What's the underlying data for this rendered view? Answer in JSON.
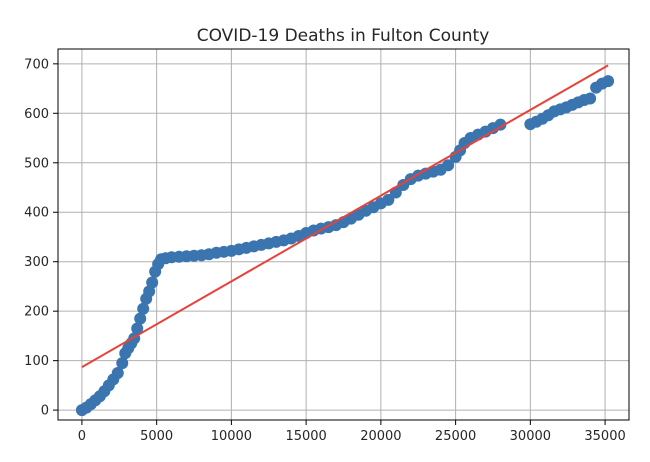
{
  "chart_data": {
    "type": "scatter",
    "title": "COVID-19 Deaths in Fulton County",
    "xlabel": "",
    "ylabel": "",
    "xlim": [
      -1600,
      36600
    ],
    "ylim": [
      -20,
      730
    ],
    "grid": true,
    "x_ticks": [
      0,
      5000,
      10000,
      15000,
      20000,
      25000,
      30000,
      35000
    ],
    "y_ticks": [
      0,
      100,
      200,
      300,
      400,
      500,
      600,
      700
    ],
    "colors": {
      "points": "#3a75b0",
      "fit_line": "#e8423a",
      "grid": "#b0b0b0",
      "axes": "#000000"
    },
    "series": [
      {
        "kind": "scatter",
        "points": [
          [
            0,
            0
          ],
          [
            300,
            5
          ],
          [
            600,
            12
          ],
          [
            900,
            20
          ],
          [
            1200,
            28
          ],
          [
            1500,
            38
          ],
          [
            1800,
            50
          ],
          [
            2100,
            62
          ],
          [
            2400,
            75
          ],
          [
            2700,
            95
          ],
          [
            2900,
            115
          ],
          [
            3100,
            125
          ],
          [
            3300,
            135
          ],
          [
            3500,
            145
          ],
          [
            3700,
            165
          ],
          [
            3900,
            185
          ],
          [
            4100,
            205
          ],
          [
            4300,
            225
          ],
          [
            4500,
            240
          ],
          [
            4700,
            258
          ],
          [
            4900,
            280
          ],
          [
            5100,
            295
          ],
          [
            5300,
            305
          ],
          [
            5600,
            307
          ],
          [
            6000,
            309
          ],
          [
            6500,
            310
          ],
          [
            7000,
            311
          ],
          [
            7500,
            312
          ],
          [
            8000,
            313
          ],
          [
            8500,
            315
          ],
          [
            9000,
            318
          ],
          [
            9500,
            320
          ],
          [
            10000,
            322
          ],
          [
            10500,
            325
          ],
          [
            11000,
            328
          ],
          [
            11500,
            331
          ],
          [
            12000,
            334
          ],
          [
            12500,
            337
          ],
          [
            13000,
            340
          ],
          [
            13500,
            343
          ],
          [
            14000,
            347
          ],
          [
            14500,
            352
          ],
          [
            15000,
            358
          ],
          [
            15500,
            363
          ],
          [
            16000,
            367
          ],
          [
            16500,
            370
          ],
          [
            17000,
            374
          ],
          [
            17500,
            380
          ],
          [
            18000,
            387
          ],
          [
            18500,
            395
          ],
          [
            19000,
            403
          ],
          [
            19500,
            410
          ],
          [
            20000,
            418
          ],
          [
            20500,
            425
          ],
          [
            21000,
            440
          ],
          [
            21500,
            455
          ],
          [
            22000,
            467
          ],
          [
            22500,
            474
          ],
          [
            23000,
            478
          ],
          [
            23500,
            482
          ],
          [
            24000,
            486
          ],
          [
            24500,
            495
          ],
          [
            25000,
            512
          ],
          [
            25300,
            525
          ],
          [
            25600,
            540
          ],
          [
            26000,
            550
          ],
          [
            26500,
            557
          ],
          [
            27000,
            563
          ],
          [
            27500,
            570
          ],
          [
            28000,
            577
          ],
          [
            30000,
            578
          ],
          [
            30400,
            583
          ],
          [
            30800,
            589
          ],
          [
            31200,
            596
          ],
          [
            31600,
            604
          ],
          [
            32000,
            608
          ],
          [
            32400,
            612
          ],
          [
            32800,
            617
          ],
          [
            33200,
            622
          ],
          [
            33600,
            627
          ],
          [
            34000,
            630
          ],
          [
            34400,
            652
          ],
          [
            34800,
            660
          ],
          [
            35200,
            665
          ]
        ]
      },
      {
        "kind": "line",
        "points": [
          [
            0,
            87
          ],
          [
            35200,
            697
          ]
        ]
      }
    ]
  }
}
